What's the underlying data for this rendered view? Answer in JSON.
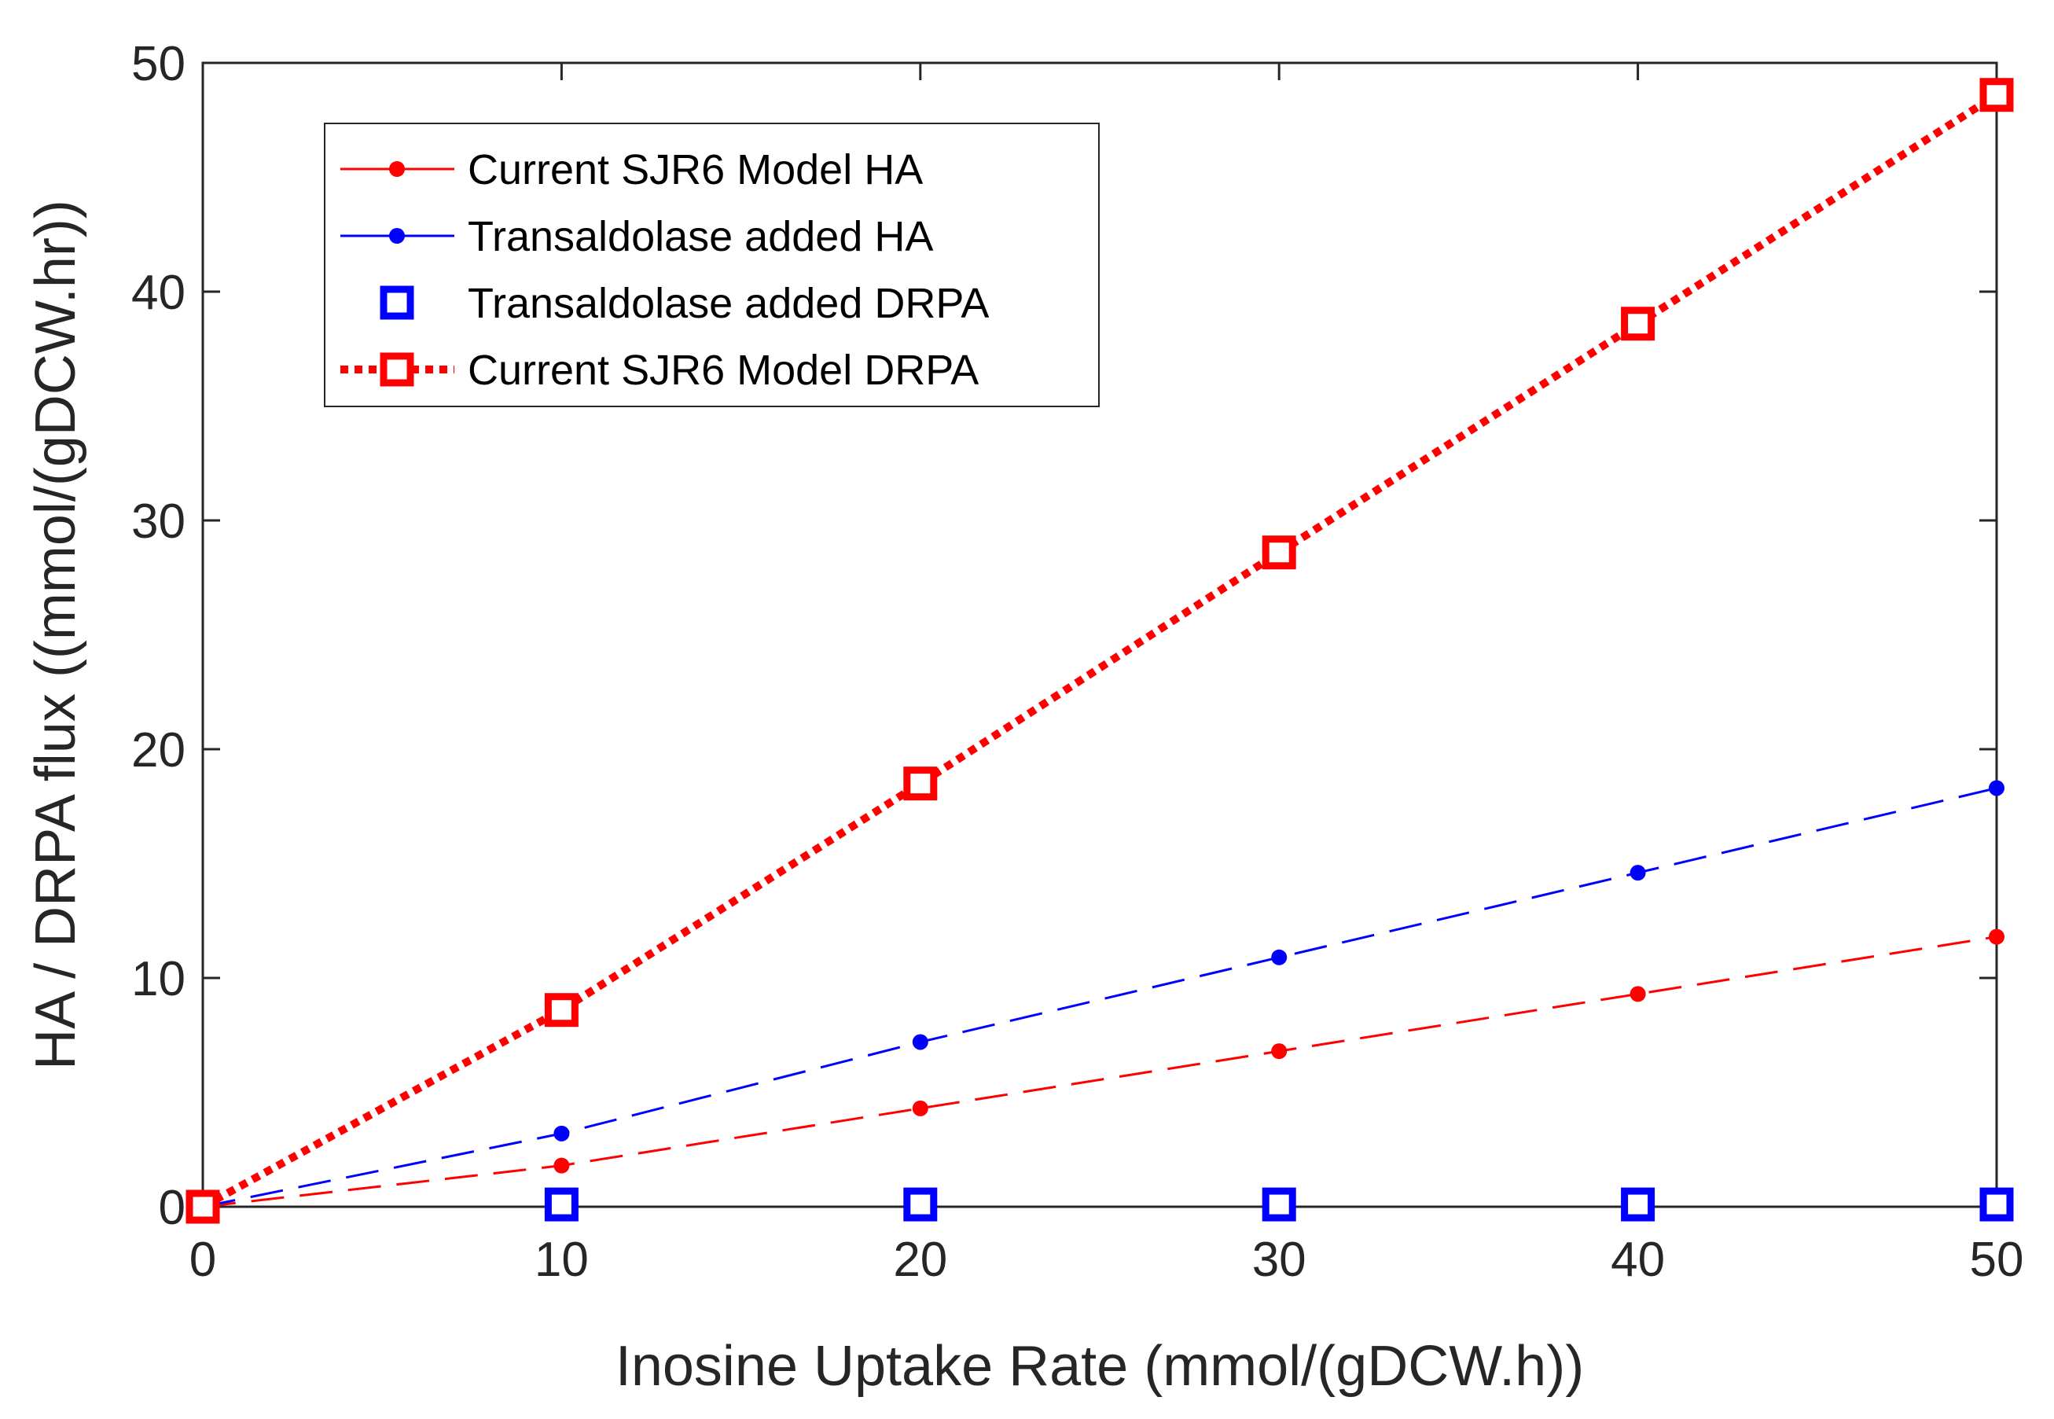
{
  "chart_data": {
    "type": "line",
    "xlabel": "Inosine Uptake Rate (mmol/(gDCW.h))",
    "ylabel": "HA / DRPA flux ((mmol/(gDCW.hr))",
    "xlim": [
      0,
      50
    ],
    "ylim": [
      0,
      50
    ],
    "x_ticks": [
      "0",
      "10",
      "20",
      "30",
      "40",
      "50"
    ],
    "y_ticks": [
      "0",
      "10",
      "20",
      "30",
      "40",
      "50"
    ],
    "grid": false,
    "legend_position": "top-left",
    "x": [
      0,
      10,
      20,
      30,
      40,
      50
    ],
    "series": [
      {
        "name": "Current SJR6 Model HA",
        "values": [
          0,
          1.8,
          4.3,
          6.8,
          9.3,
          11.8
        ],
        "color": "#ff0000",
        "line": "dashed",
        "marker": "dot"
      },
      {
        "name": "Transaldolase added HA",
        "values": [
          0,
          3.2,
          7.2,
          10.9,
          14.6,
          18.3
        ],
        "color": "#0000ff",
        "line": "dashed",
        "marker": "dot"
      },
      {
        "name": "Transaldolase added DRPA",
        "values": [
          0,
          0.1,
          0.1,
          0.1,
          0.1,
          0.1
        ],
        "color": "#0000ff",
        "line": "none",
        "marker": "square"
      },
      {
        "name": "Current SJR6 Model DRPA",
        "values": [
          0,
          8.6,
          18.5,
          28.6,
          38.6,
          48.6
        ],
        "color": "#ff0000",
        "line": "dotted",
        "marker": "square"
      }
    ]
  }
}
